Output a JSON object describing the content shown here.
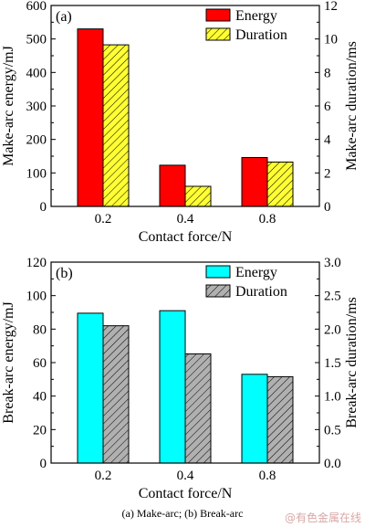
{
  "chart_data": [
    {
      "type": "bar",
      "panel_label": "(a)",
      "categories": [
        "0.2",
        "0.4",
        "0.8"
      ],
      "xlabel": "Contact force/N",
      "ylabel": "Make-arc energy/mJ",
      "y2label": "Make-arc duration/ms",
      "ylim": [
        0,
        600
      ],
      "y2lim": [
        0,
        12
      ],
      "yticks": [
        0,
        100,
        200,
        300,
        400,
        500,
        600
      ],
      "y2ticks": [
        0,
        2,
        4,
        6,
        8,
        10,
        12
      ],
      "legend_position": "top-right",
      "series": [
        {
          "name": "Energy",
          "axis": "left",
          "values": [
            530,
            123,
            146
          ],
          "color": "#ff0000",
          "pattern": "solid"
        },
        {
          "name": "Duration",
          "axis": "right",
          "values": [
            9.65,
            1.2,
            2.65
          ],
          "color": "#ffff33",
          "pattern": "hatch"
        }
      ]
    },
    {
      "type": "bar",
      "panel_label": "(b)",
      "categories": [
        "0.2",
        "0.4",
        "0.8"
      ],
      "xlabel": "Contact force/N",
      "ylabel": "Break-arc energy/mJ",
      "y2label": "Break-arc duration/ms",
      "ylim": [
        0,
        120
      ],
      "y2lim": [
        0,
        3.0
      ],
      "yticks": [
        0,
        20,
        40,
        60,
        80,
        100,
        120
      ],
      "y2ticks": [
        0,
        0.5,
        1.0,
        1.5,
        2.0,
        2.5,
        3.0
      ],
      "legend_position": "top-right",
      "series": [
        {
          "name": "Energy",
          "axis": "left",
          "values": [
            89.5,
            91,
            53
          ],
          "color": "#00ffff",
          "pattern": "solid"
        },
        {
          "name": "Duration",
          "axis": "right",
          "values": [
            2.05,
            1.63,
            1.29
          ],
          "color": "#b0b0b0",
          "pattern": "hatch"
        }
      ]
    }
  ],
  "caption": "(a)  Make-arc; (b) Break-arc",
  "watermark": "@有色金属在线"
}
